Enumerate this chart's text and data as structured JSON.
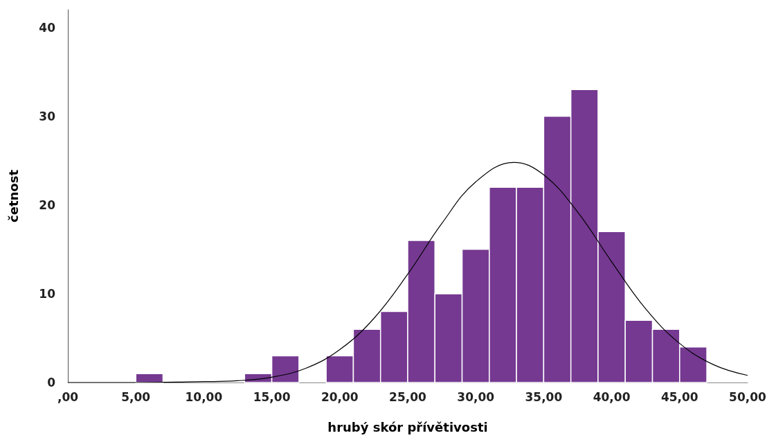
{
  "chart_data": {
    "type": "histogram",
    "xlabel": "hrubý skór přívětivosti",
    "ylabel": "četnost",
    "xlim": [
      0,
      50
    ],
    "xticks": [
      {
        "value": 0,
        "label": ",00"
      },
      {
        "value": 5,
        "label": "5,00"
      },
      {
        "value": 10,
        "label": "10,00"
      },
      {
        "value": 15,
        "label": "15,00"
      },
      {
        "value": 20,
        "label": "20,00"
      },
      {
        "value": 25,
        "label": "25,00"
      },
      {
        "value": 30,
        "label": "30,00"
      },
      {
        "value": 35,
        "label": "35,00"
      },
      {
        "value": 40,
        "label": "40,00"
      },
      {
        "value": 45,
        "label": "45,00"
      },
      {
        "value": 50,
        "label": "50,00"
      }
    ],
    "ylim": [
      0,
      42
    ],
    "yticks": [
      0,
      10,
      20,
      30,
      40
    ],
    "grid": false,
    "series": [
      {
        "color": "#753991",
        "bins": [
          5,
          7,
          9,
          11,
          13,
          15,
          17,
          19,
          21,
          23,
          25,
          27,
          29,
          31,
          33,
          35,
          37,
          39,
          41,
          43,
          45,
          47
        ],
        "values": [
          1,
          0,
          0,
          0,
          1,
          3,
          0,
          3,
          6,
          8,
          16,
          10,
          15,
          22,
          22,
          30,
          33,
          17,
          7,
          6,
          4
        ]
      },
      {
        "type": "line",
        "color": "#000000",
        "marker": "none",
        "x": [
          0,
          5,
          10,
          12.5,
          15,
          17.5,
          20,
          22.5,
          25,
          27.5,
          30,
          32.8,
          35,
          37.5,
          40,
          42.5,
          45,
          47.5,
          50
        ],
        "values": [
          0,
          0,
          0.1,
          0.2,
          0.6,
          1.6,
          3.7,
          7.2,
          12.2,
          17.9,
          22.6,
          24.8,
          23.4,
          19.2,
          13.6,
          8.3,
          4.4,
          2,
          0.8
        ]
      }
    ]
  }
}
